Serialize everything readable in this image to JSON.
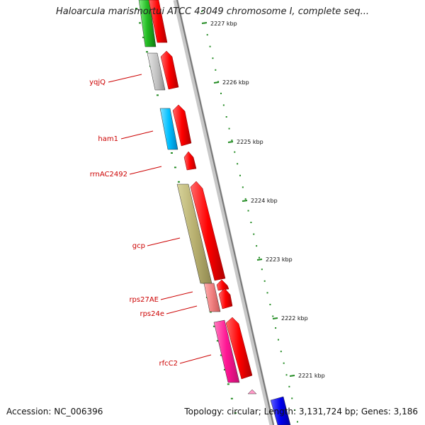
{
  "title": "Haloarcula marismortui ATCC 43049 chromosome I, complete seq...",
  "footer": {
    "accession": "Accession: NC_006396",
    "summary": "Topology: circular; Length: 3,131,724 bp; Genes: 3,186"
  },
  "colors": {
    "gene_label": "#cc0000",
    "backbone": "#888888",
    "tick": "#228b22",
    "forward_cds": "#ee0000"
  },
  "kbp_ticks": [
    "2227 kbp",
    "2226 kbp",
    "2225 kbp",
    "2224 kbp",
    "2223 kbp",
    "2222 kbp",
    "2221 kbp"
  ],
  "genes": [
    {
      "label": "yqjQ",
      "category_color": "#c0c0c0"
    },
    {
      "label": "ham1",
      "category_color": "#00bfff"
    },
    {
      "label": "rrnAC2492",
      "category_color": "none"
    },
    {
      "label": "gcp",
      "category_color": "#b8b070"
    },
    {
      "label": "rps27AE",
      "category_color": "#f08080"
    },
    {
      "label": "rps24e",
      "category_color": "none"
    },
    {
      "label": "rfcC2",
      "category_color": "#ff1493"
    }
  ]
}
